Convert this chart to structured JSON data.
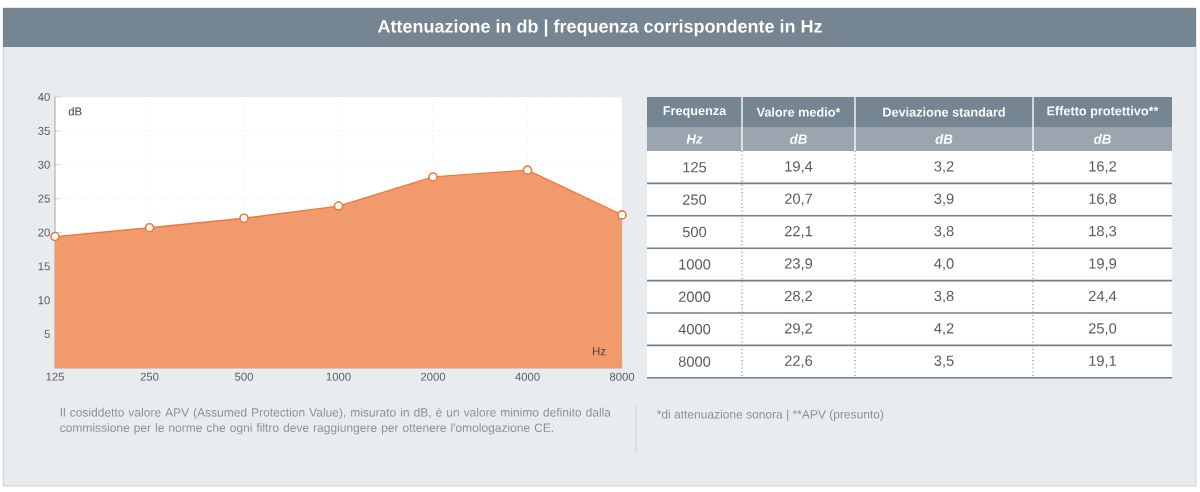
{
  "chart_data": [
    {
      "type": "area",
      "title": "Attenuazione in db | frequenza corrispondente in Hz",
      "xlabel": "Hz",
      "ylabel": "dB",
      "categories": [
        "125",
        "250",
        "500",
        "1000",
        "2000",
        "4000",
        "8000"
      ],
      "values": [
        19.4,
        20.7,
        22.1,
        23.9,
        28.2,
        29.2,
        22.6
      ],
      "color": "#ec7a3c",
      "ylim": [
        0,
        40
      ],
      "yticks": [
        5,
        10,
        15,
        20,
        25,
        30,
        35,
        40
      ],
      "grid": true,
      "marker": "circle",
      "annotations": [
        "Il cosiddetto valore APV (Assumed Protection Value), misurato in dB, è un valore minimo definito dalla commissione per le norme che ogni filtro deve raggiungere per ottenere l'omologazione CE."
      ]
    },
    {
      "type": "other",
      "xlabel": "Frequenza",
      "categories": [
        "125",
        "250",
        "500",
        "1000",
        "2000",
        "4000",
        "8000"
      ],
      "series": [
        {
          "name": "Valore medio*",
          "values": [
            19.4,
            20.7,
            22.1,
            23.9,
            28.2,
            29.2,
            22.6
          ],
          "value_labels": [
            "19,4",
            "20,7",
            "22,1",
            "23,9",
            "28,2",
            "29,2",
            "22,6"
          ]
        },
        {
          "name": "Deviazione standard",
          "values": [
            3.2,
            3.9,
            3.8,
            4.0,
            3.8,
            4.2,
            3.5
          ],
          "value_labels": [
            "3,2",
            "3,9",
            "3,8",
            "4,0",
            "3,8",
            "4,2",
            "3,5"
          ]
        },
        {
          "name": "Effetto protettivo**",
          "values": [
            16.2,
            16.8,
            18.3,
            19.9,
            24.4,
            25.0,
            19.1
          ],
          "value_labels": [
            "16,2",
            "16,8",
            "18,3",
            "19,9",
            "24,4",
            "25,0",
            "19,1"
          ]
        }
      ],
      "annotations": [
        "Hz",
        "dB",
        "dB",
        "dB",
        "*di attenuazione sonora | **APV (presunto)"
      ]
    }
  ]
}
